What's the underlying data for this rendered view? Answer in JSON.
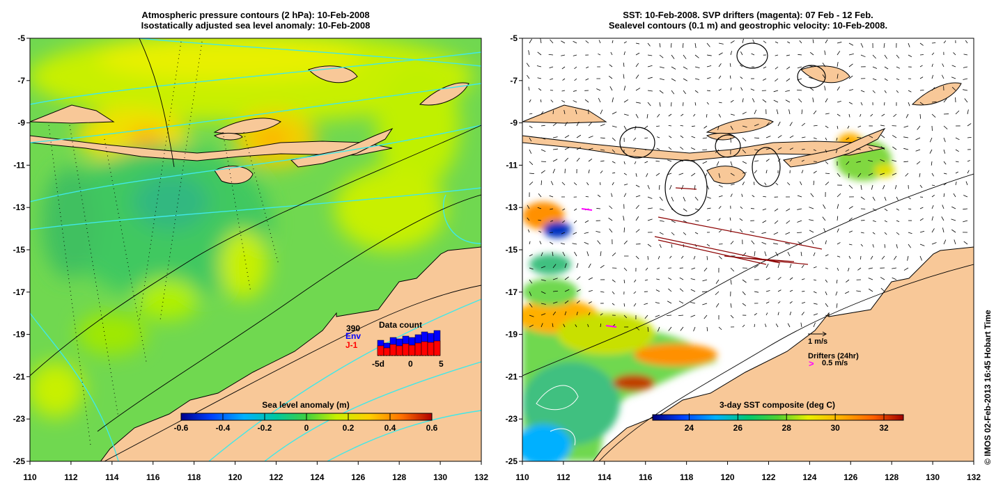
{
  "left_panel": {
    "title_line1": "Atmospheric pressure contours (2 hPa): 10-Feb-2008",
    "title_line2": "Isostatically adjusted sea level anomaly: 10-Feb-2008",
    "colorbar": {
      "label": "Sea level anomaly (m)",
      "range": [
        -0.6,
        0.6
      ],
      "ticks": [
        "-0.6",
        "-0.4",
        "-0.2",
        "0",
        "0.2",
        "0.4",
        "0.6"
      ]
    },
    "data_count": {
      "label": "Data count",
      "max_label": "390",
      "series": [
        {
          "name": "Env",
          "color": "#0000ff"
        },
        {
          "name": "J-1",
          "color": "#ff0000"
        }
      ],
      "x_ticks": [
        "-5d",
        "0",
        "5"
      ]
    }
  },
  "right_panel": {
    "title_line1": "SST: 10-Feb-2008. SVP drifters (magenta): 07 Feb - 12 Feb.",
    "title_line2": "Sealevel contours (0.1 m) and geostrophic velocity: 10-Feb-2008.",
    "colorbar": {
      "label": "3-day SST composite (deg C)",
      "range": [
        22.5,
        32.8
      ],
      "ticks": [
        "24",
        "26",
        "28",
        "30",
        "32"
      ]
    },
    "velocity_legend": "1 m/s",
    "drifters_legend_title": "Drifters (24hr)",
    "drifters_legend_speed": "0.5 m/s"
  },
  "axes": {
    "lon_ticks": [
      "110",
      "112",
      "114",
      "116",
      "118",
      "120",
      "122",
      "124",
      "126",
      "128",
      "130",
      "132"
    ],
    "lat_ticks": [
      "-5",
      "-7",
      "-9",
      "-11",
      "-13",
      "-15",
      "-17",
      "-19",
      "-21",
      "-23",
      "-25"
    ],
    "lon_range": [
      110,
      132
    ],
    "lat_range": [
      -25,
      -5
    ]
  },
  "credit": "© IMOS 02-Feb-2013 16:45 Hobart Time",
  "colors": {
    "land": "#f8c898",
    "ocean_background": "#70d850",
    "contour": "#40e8e8",
    "drifter": "#ff00ff",
    "drifter_track": "#8b0000"
  }
}
